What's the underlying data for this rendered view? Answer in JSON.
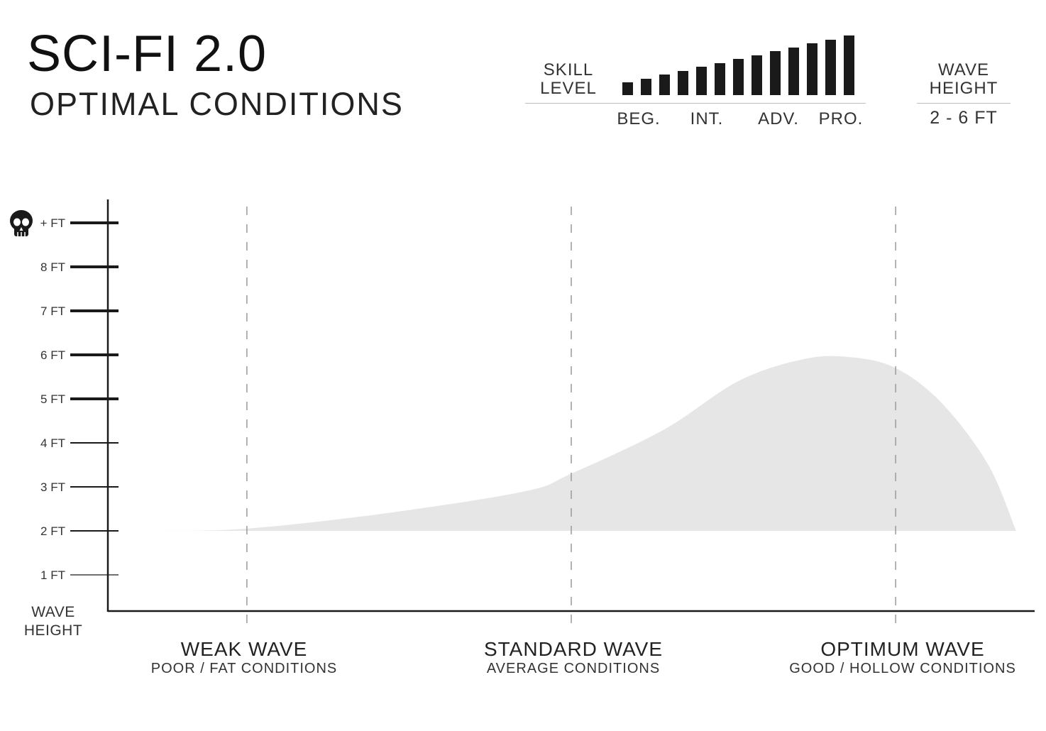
{
  "header": {
    "title": "SCI-FI 2.0",
    "subtitle": "OPTIMAL CONDITIONS"
  },
  "skill_level": {
    "label_line1": "SKILL",
    "label_line2": "LEVEL",
    "bar_count": 13,
    "ticks": [
      "BEG.",
      "INT.",
      "ADV.",
      "PRO."
    ]
  },
  "wave_height_box": {
    "label_line1": "WAVE",
    "label_line2": "HEIGHT",
    "value": "2 - 6 FT"
  },
  "chart_data": {
    "type": "area",
    "ylabel": "WAVE HEIGHT",
    "y_tick_labels": [
      "1 FT",
      "2 FT",
      "3 FT",
      "4 FT",
      "5 FT",
      "6 FT",
      "7 FT",
      "8 FT",
      "+ FT"
    ],
    "y_tick_values": [
      1,
      2,
      3,
      4,
      5,
      6,
      7,
      8,
      9
    ],
    "ylim": [
      0.2,
      9.6
    ],
    "xlim": [
      0,
      1
    ],
    "x_categories": [
      {
        "title": "WEAK WAVE",
        "subtitle": "POOR / FAT CONDITIONS",
        "x": 0.15
      },
      {
        "title": "STANDARD WAVE",
        "subtitle": "AVERAGE CONDITIONS",
        "x": 0.5
      },
      {
        "title": "OPTIMUM WAVE",
        "subtitle": "GOOD / HOLLOW CONDITIONS",
        "x": 0.85
      }
    ],
    "baseline": 2,
    "series": [
      {
        "x": [
          0.06,
          0.15,
          0.3,
          0.45,
          0.5,
          0.6,
          0.68,
          0.75,
          0.8,
          0.85,
          0.9,
          0.95,
          0.98
        ],
        "y": [
          2.0,
          2.05,
          2.4,
          2.9,
          3.3,
          4.3,
          5.4,
          5.9,
          5.95,
          5.7,
          4.9,
          3.5,
          2.0
        ]
      }
    ],
    "colors": {
      "area": "#e6e6e6",
      "axis": "#1a1a1a",
      "gridline": "#9a9a9a"
    },
    "skull_icon": "skull-icon"
  }
}
